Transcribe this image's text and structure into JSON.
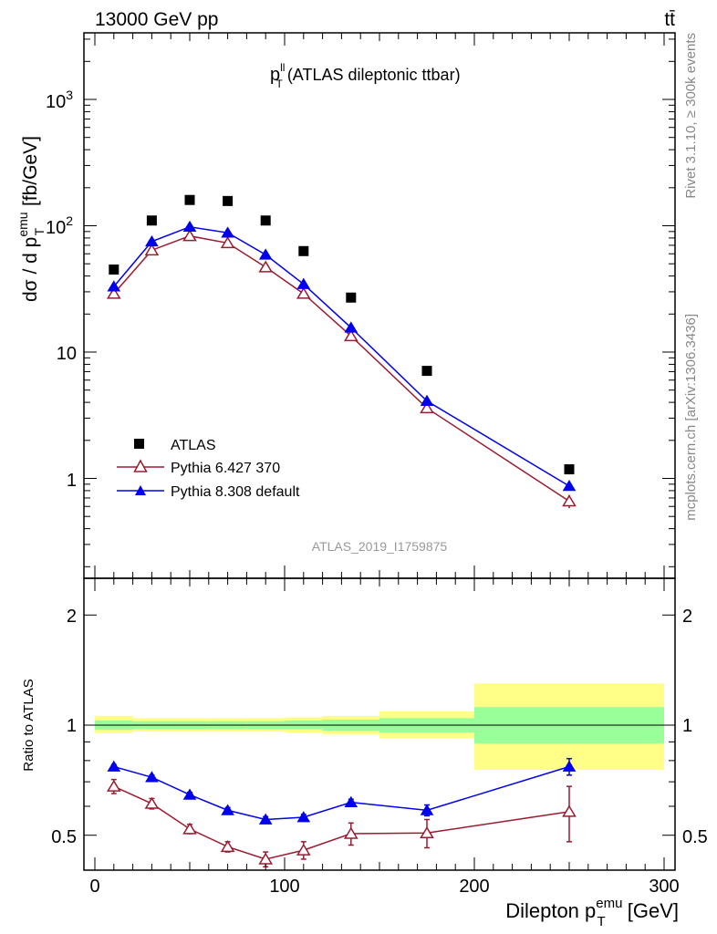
{
  "header": {
    "energy_label": "13000 GeV pp",
    "process_label": "tt̄"
  },
  "side_labels": {
    "rivet": "Rivet 3.1.10, ≥ 300k events",
    "mcplots": "mcplots.cern.ch [arXiv:1306.3436]"
  },
  "plot_title": {
    "var": "p",
    "sup": "ll",
    "sub": "T",
    "rest": " (ATLAS dileptonic ttbar)"
  },
  "analysis_id": "ATLAS_2019_I1759875",
  "main_ylabel": {
    "prefix": "dσ / d p",
    "sup": "emu",
    "sub": "T",
    "suffix": " [fb/GeV]"
  },
  "ratio_ylabel": "Ratio to ATLAS",
  "xlabel": {
    "prefix": "Dilepton p",
    "sup": "emu",
    "sub": "T",
    "suffix": " [GeV]"
  },
  "main_ytick_labels": {
    "t1": "1",
    "t10": "10",
    "t100_base": "10",
    "t100_exp": "2",
    "t1000_base": "10",
    "t1000_exp": "3"
  },
  "ratio_ytick_labels": [
    "0.5",
    "1",
    "2"
  ],
  "xtick_labels": [
    "0",
    "100",
    "200",
    "300"
  ],
  "legend": [
    {
      "label": "ATLAS",
      "marker": "square",
      "color": "#000000"
    },
    {
      "label": "Pythia 6.427 370",
      "marker": "open-triangle",
      "color": "#9b1b30"
    },
    {
      "label": "Pythia 8.308 default",
      "marker": "filled-triangle",
      "color": "#0000ee"
    }
  ],
  "colors": {
    "data": "#000000",
    "pythia6": "#9b1b30",
    "pythia8": "#0000ee",
    "band_inner": "#99ff99",
    "band_outer": "#ffff88",
    "side_text": "#888888"
  },
  "chart_data": [
    {
      "type": "scatter",
      "xscale": "linear",
      "yscale": "log",
      "xlim": [
        -10,
        305
      ],
      "ylim": [
        0.19,
        3500
      ],
      "bins": [
        [
          0,
          20
        ],
        [
          20,
          40
        ],
        [
          40,
          60
        ],
        [
          60,
          80
        ],
        [
          80,
          100
        ],
        [
          100,
          120
        ],
        [
          120,
          150
        ],
        [
          150,
          200
        ],
        [
          200,
          300
        ]
      ],
      "x": [
        10,
        30,
        50,
        70,
        90,
        110,
        135,
        175,
        250
      ],
      "series": [
        {
          "name": "ATLAS",
          "values": [
            45,
            110,
            160,
            157,
            110,
            63,
            27,
            7.1,
            1.18
          ]
        },
        {
          "name": "Pythia 6.427 370",
          "values": [
            29,
            64,
            83,
            73,
            47,
            29,
            13.4,
            3.6,
            0.66
          ]
        },
        {
          "name": "Pythia 8.308 default",
          "values": [
            33,
            75,
            98,
            88,
            59,
            34.5,
            15.6,
            4.1,
            0.87
          ]
        }
      ]
    },
    {
      "type": "line",
      "xscale": "linear",
      "yscale": "log",
      "xlim": [
        -10,
        305
      ],
      "ylim": [
        0.4,
        2.4
      ],
      "ylabel": "Ratio to ATLAS",
      "x": [
        10,
        30,
        50,
        70,
        90,
        110,
        135,
        175,
        250
      ],
      "series": [
        {
          "name": "Pythia 6.427 370",
          "values": [
            0.68,
            0.61,
            0.52,
            0.465,
            0.43,
            0.455,
            0.505,
            0.507,
            0.58
          ],
          "errors": [
            0.03,
            0.02,
            0.015,
            0.015,
            0.02,
            0.025,
            0.035,
            0.045,
            0.1
          ]
        },
        {
          "name": "Pythia 8.308 default",
          "values": [
            0.77,
            0.72,
            0.645,
            0.585,
            0.552,
            0.56,
            0.615,
            0.585,
            0.77
          ],
          "errors": [
            0.01,
            0.01,
            0.01,
            0.01,
            0.01,
            0.01,
            0.012,
            0.02,
            0.04
          ]
        }
      ],
      "uncertainty_bands": {
        "edges": [
          0,
          20,
          40,
          60,
          80,
          100,
          120,
          150,
          200,
          300
        ],
        "inner_low": [
          0.97,
          0.975,
          0.975,
          0.975,
          0.975,
          0.975,
          0.965,
          0.955,
          0.89
        ],
        "inner_high": [
          1.03,
          1.025,
          1.025,
          1.025,
          1.025,
          1.03,
          1.035,
          1.045,
          1.12
        ],
        "outer_low": [
          0.95,
          0.96,
          0.96,
          0.96,
          0.96,
          0.955,
          0.945,
          0.92,
          0.755
        ],
        "outer_high": [
          1.06,
          1.045,
          1.045,
          1.045,
          1.045,
          1.05,
          1.06,
          1.09,
          1.3
        ]
      }
    }
  ]
}
